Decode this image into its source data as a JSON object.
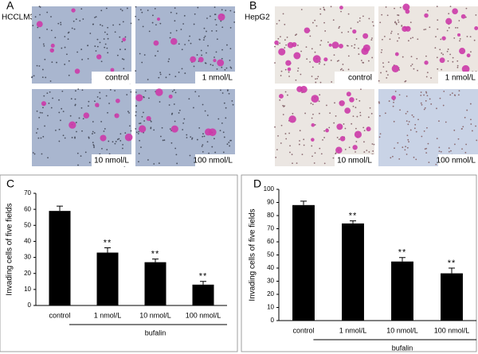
{
  "image_panels": [
    {
      "panel_label": "A",
      "cell_line": "HCCLM3",
      "images": [
        "control",
        "1 nmol/L",
        "10 nmol/L",
        "100 nmol/L"
      ]
    },
    {
      "panel_label": "B",
      "cell_line": "HepG2",
      "images": [
        "control",
        "1 nmol/L",
        "10 nmol/L",
        "100 nmol/L"
      ]
    }
  ],
  "chart_data": [
    {
      "type": "bar",
      "panel_label": "C",
      "y_label": "Invading cells of five fields",
      "categories": [
        "control",
        "1 nmol/L",
        "10 nmol/L",
        "100 nmol/L"
      ],
      "values": [
        59,
        33,
        27,
        13
      ],
      "errors": [
        3,
        3,
        2,
        2
      ],
      "significance": [
        null,
        "**",
        "**",
        "**"
      ],
      "group_label": "bufalin",
      "color": "#000000",
      "ylim": [
        0,
        70
      ],
      "yticks": [
        0,
        10,
        20,
        30,
        40,
        50,
        60,
        70
      ]
    },
    {
      "type": "bar",
      "panel_label": "D",
      "y_label": "Invading cells of five fields",
      "categories": [
        "control",
        "1 nmol/L",
        "10 nmol/L",
        "100 nmol/L"
      ],
      "values": [
        88,
        74,
        45,
        36
      ],
      "errors": [
        3,
        2,
        3,
        4
      ],
      "significance": [
        null,
        "**",
        "**",
        "**"
      ],
      "group_label": "bufalin",
      "color": "#000000",
      "ylim": [
        0,
        100
      ],
      "yticks": [
        0,
        10,
        20,
        30,
        40,
        50,
        60,
        70,
        80,
        90,
        100
      ]
    }
  ]
}
